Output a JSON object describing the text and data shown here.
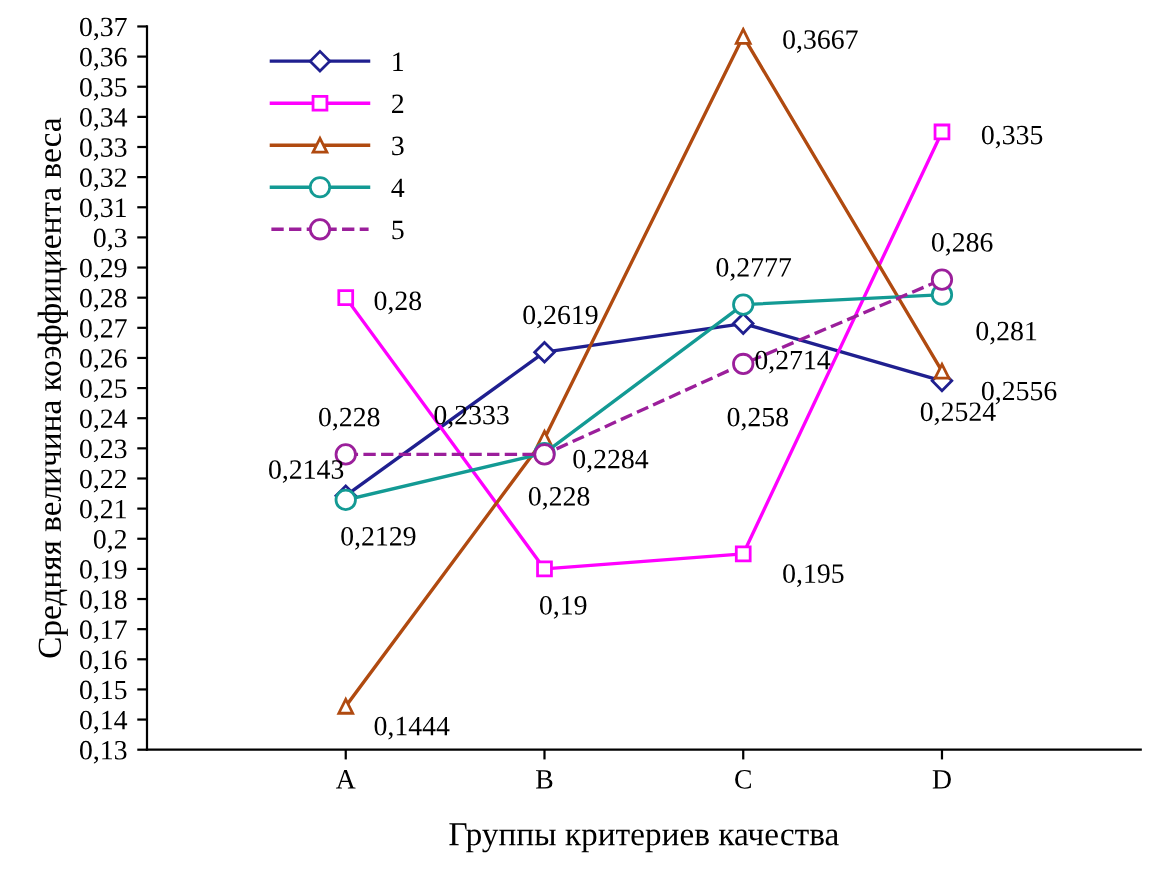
{
  "chart_data": {
    "type": "line",
    "xlabel": "Группы критериев качества",
    "ylabel": "Средняя величина коэффициента веса",
    "categories": [
      "A",
      "B",
      "C",
      "D"
    ],
    "series": [
      {
        "name": "1",
        "color": "#1f1f8f",
        "marker": "diamond",
        "line_style": "solid",
        "values": [
          0.2143,
          0.2619,
          0.2714,
          0.2524
        ],
        "value_labels": [
          "0,2143",
          "0,2619",
          "0,2714",
          "0,2524"
        ]
      },
      {
        "name": "2",
        "color": "#ff00ff",
        "marker": "square",
        "line_style": "solid",
        "values": [
          0.28,
          0.19,
          0.195,
          0.335
        ],
        "value_labels": [
          "0,28",
          "0,19",
          "0,195",
          "0,335"
        ]
      },
      {
        "name": "3",
        "color": "#b04a10",
        "marker": "triangle",
        "line_style": "solid",
        "values": [
          0.1444,
          0.2333,
          0.3667,
          0.2556
        ],
        "value_labels": [
          "0,1444",
          "0,2333",
          "0,3667",
          "0,2556"
        ]
      },
      {
        "name": "4",
        "color": "#139a94",
        "marker": "circle",
        "line_style": "solid",
        "values": [
          0.2129,
          0.2284,
          0.2777,
          0.281
        ],
        "value_labels": [
          "0,2129",
          "0,2284",
          "0,2777",
          "0,281"
        ]
      },
      {
        "name": "5",
        "color": "#9b1f9b",
        "marker": "circle",
        "line_style": "dashed",
        "values": [
          0.228,
          0.228,
          0.258,
          0.286
        ],
        "value_labels": [
          "0,228",
          "0,228",
          "0,258",
          "0,286"
        ]
      }
    ],
    "ylim": [
      0.13,
      0.37
    ],
    "yticks": [
      {
        "value": 0.13,
        "label": "0,13"
      },
      {
        "value": 0.14,
        "label": "0,14"
      },
      {
        "value": 0.15,
        "label": "0,15"
      },
      {
        "value": 0.16,
        "label": "0,16"
      },
      {
        "value": 0.17,
        "label": "0,17"
      },
      {
        "value": 0.18,
        "label": "0,18"
      },
      {
        "value": 0.19,
        "label": "0,19"
      },
      {
        "value": 0.2,
        "label": "0,2"
      },
      {
        "value": 0.21,
        "label": "0,21"
      },
      {
        "value": 0.22,
        "label": "0,22"
      },
      {
        "value": 0.23,
        "label": "0,23"
      },
      {
        "value": 0.24,
        "label": "0,24"
      },
      {
        "value": 0.25,
        "label": "0,25"
      },
      {
        "value": 0.26,
        "label": "0,26"
      },
      {
        "value": 0.27,
        "label": "0,27"
      },
      {
        "value": 0.28,
        "label": "0,28"
      },
      {
        "value": 0.29,
        "label": "0,29"
      },
      {
        "value": 0.3,
        "label": "0,3"
      },
      {
        "value": 0.31,
        "label": "0,31"
      },
      {
        "value": 0.32,
        "label": "0,32"
      },
      {
        "value": 0.33,
        "label": "0,33"
      },
      {
        "value": 0.34,
        "label": "0,34"
      },
      {
        "value": 0.35,
        "label": "0,35"
      },
      {
        "value": 0.36,
        "label": "0,36"
      },
      {
        "value": 0.37,
        "label": "0,37"
      }
    ],
    "grid": false,
    "legend": "top left"
  }
}
